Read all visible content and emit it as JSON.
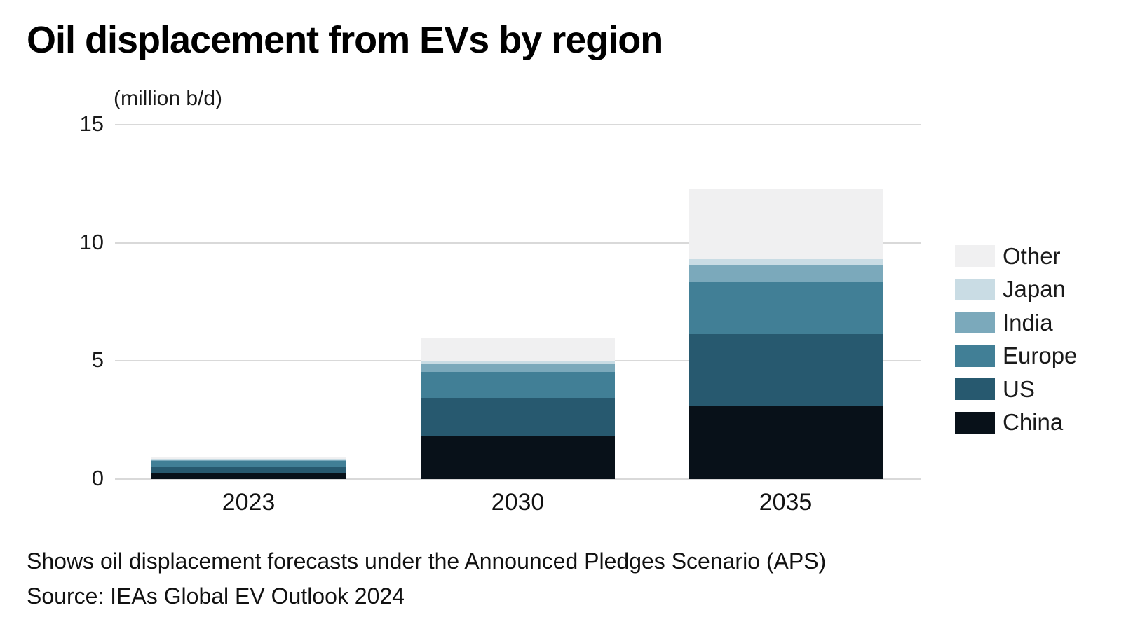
{
  "title": "Oil displacement from EVs by region",
  "caption": {
    "note": "Shows oil displacement forecasts under the Announced Pledges Scenario (APS)",
    "source": "Source: IEAs Global EV Outlook 2024"
  },
  "chart_data": {
    "type": "bar",
    "stacked": true,
    "title": "Oil displacement from EVs by region",
    "unit_label": "(million b/d)",
    "xlabel": "",
    "ylabel": "million b/d",
    "categories": [
      "2023",
      "2030",
      "2035"
    ],
    "series": [
      {
        "name": "China",
        "color": "#081119",
        "values": [
          0.27,
          1.85,
          3.1
        ]
      },
      {
        "name": "US",
        "color": "#27596F",
        "values": [
          0.24,
          1.6,
          3.05
        ]
      },
      {
        "name": "Europe",
        "color": "#417F96",
        "values": [
          0.27,
          1.1,
          2.2
        ]
      },
      {
        "name": "India",
        "color": "#7BA9BB",
        "values": [
          0.04,
          0.3,
          0.7
        ]
      },
      {
        "name": "Japan",
        "color": "#C9DCE4",
        "values": [
          0.01,
          0.12,
          0.27
        ]
      },
      {
        "name": "Other",
        "color": "#F0F0F1",
        "values": [
          0.12,
          1.0,
          2.95
        ]
      }
    ],
    "totals": [
      0.95,
      5.97,
      12.27
    ],
    "legend_order_top_to_bottom": [
      "Other",
      "Japan",
      "India",
      "Europe",
      "US",
      "China"
    ],
    "legend_position": "right",
    "ylim": [
      0,
      15
    ],
    "yticks": [
      0,
      5,
      10,
      15
    ],
    "grid": true
  },
  "colors": {
    "background": "#ffffff",
    "gridline": "#d9d9d9",
    "text": "#1a1a1a"
  },
  "layout_values": {
    "bar_centers_note": "bars at years 2023, 2030, 2035"
  }
}
